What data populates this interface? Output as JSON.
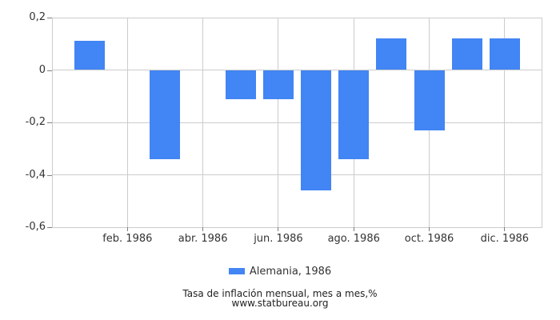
{
  "chart_data": {
    "type": "bar",
    "title": "Tasa de inflación mensual, mes a mes,%",
    "source": "www.statbureau.org",
    "series": [
      {
        "name": "Alemania, 1986",
        "values": [
          0.11,
          0,
          -0.34,
          0,
          -0.11,
          -0.11,
          -0.46,
          -0.34,
          0.12,
          -0.23,
          0.12,
          0.12
        ]
      }
    ],
    "categories": [
      "ene. 1986",
      "feb. 1986",
      "mar. 1986",
      "abr. 1986",
      "may. 1986",
      "jun. 1986",
      "jul. 1986",
      "ago. 1986",
      "sep. 1986",
      "oct. 1986",
      "nov. 1986",
      "dic. 1986"
    ],
    "x_tick_indices": [
      1,
      3,
      5,
      7,
      9,
      11
    ],
    "x_tick_labels": [
      "feb. 1986",
      "abr. 1986",
      "jun. 1986",
      "ago. 1986",
      "oct. 1986",
      "dic. 1986"
    ],
    "y_ticks": [
      {
        "value": 0.2,
        "label": "0,2"
      },
      {
        "value": 0,
        "label": "0"
      },
      {
        "value": -0.2,
        "label": "-0,2"
      },
      {
        "value": -0.4,
        "label": "-0,4"
      },
      {
        "value": -0.6,
        "label": "-0,6"
      }
    ],
    "ylim": [
      -0.6,
      0.2
    ],
    "grid": true,
    "legend_position": "bottom",
    "colors": {
      "bar": "#4285f4",
      "grid": "#cccccc",
      "tick": "#808080",
      "text": "#333333"
    }
  },
  "legend": {
    "label": "Alemania, 1986"
  },
  "captions": {
    "title": "Tasa de inflación mensual, mes a mes,%",
    "source": "www.statbureau.org"
  }
}
